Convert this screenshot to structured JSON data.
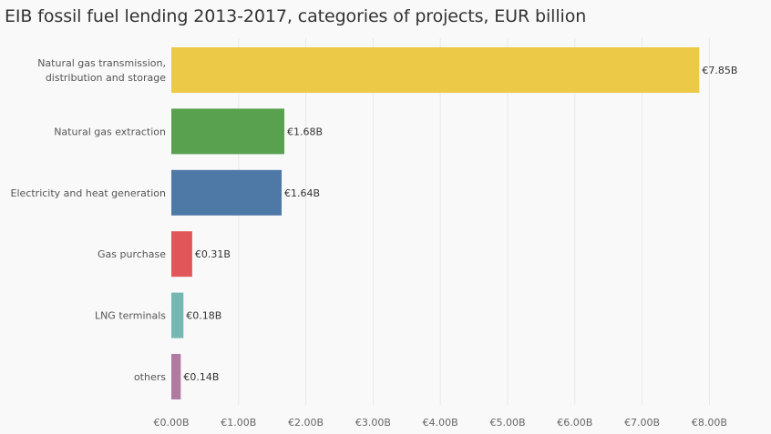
{
  "chart_data": {
    "type": "bar",
    "orientation": "horizontal",
    "title": "EIB fossil fuel lending 2013-2017, categories of projects, EUR billion",
    "categories": [
      "Natural gas transmission, distribution and storage",
      "Natural gas extraction",
      "Electricity and heat generation",
      "Gas purchase",
      "LNG terminals",
      "others"
    ],
    "category_lines": [
      [
        "Natural gas transmission,",
        "distribution and storage"
      ],
      [
        "Natural gas extraction"
      ],
      [
        "Electricity and heat generation"
      ],
      [
        "Gas purchase"
      ],
      [
        "LNG terminals"
      ],
      [
        "others"
      ]
    ],
    "values": [
      7.85,
      1.68,
      1.64,
      0.31,
      0.18,
      0.14
    ],
    "value_labels": [
      "€7.85B",
      "€1.68B",
      "€1.64B",
      "€0.31B",
      "€0.18B",
      "€0.14B"
    ],
    "colors": [
      "#EDC948",
      "#59A14F",
      "#4E79A7",
      "#E15759",
      "#76B7B2",
      "#B07AA1"
    ],
    "x_ticks": [
      0,
      1,
      2,
      3,
      4,
      5,
      6,
      7,
      8
    ],
    "x_tick_labels": [
      "€0.00B",
      "€1.00B",
      "€2.00B",
      "€3.00B",
      "€4.00B",
      "€5.00B",
      "€6.00B",
      "€7.00B",
      "€8.00B"
    ],
    "xlim": [
      0,
      8.8
    ],
    "xlabel": "",
    "ylabel": "",
    "grid": true,
    "legend": "none"
  }
}
